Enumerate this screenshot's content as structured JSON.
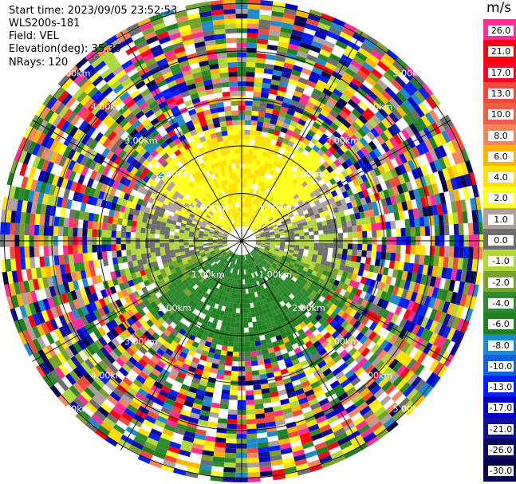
{
  "header": {
    "start_time": "Start time: 2023/09/05 23:52:53",
    "station": "WLS200s-181",
    "field": "Field: VEL",
    "elevation": "Elevation(deg): 35.30",
    "nrays": "NRays: 120"
  },
  "colorbar": {
    "unit": "m/s",
    "levels": [
      {
        "label": "26.0",
        "color": "#ff2c9a",
        "text": "#000000"
      },
      {
        "label": "21.0",
        "color": "#ff0010",
        "text": "#000000"
      },
      {
        "label": "17.0",
        "color": "#ff0020",
        "text": "#000000"
      },
      {
        "label": "13.0",
        "color": "#f24a3a",
        "text": "#000000"
      },
      {
        "label": "10.0",
        "color": "#f25e45",
        "text": "#000000"
      },
      {
        "label": "8.0",
        "color": "#f7845a",
        "text": "#000000"
      },
      {
        "label": "6.0",
        "color": "#f9b500",
        "text": "#000000"
      },
      {
        "label": "4.0",
        "color": "#ffe000",
        "text": "#000000"
      },
      {
        "label": "2.0",
        "color": "#ffff20",
        "text": "#000000"
      },
      {
        "label": "1.0",
        "color": "#b0a0a0",
        "text": "#000000"
      },
      {
        "label": "0.0",
        "color": "#6e6e6e",
        "text": "#000000"
      },
      {
        "label": "-1.0",
        "color": "#b0d83c",
        "text": "#000000"
      },
      {
        "label": "-2.0",
        "color": "#77a32a",
        "text": "#000000"
      },
      {
        "label": "-4.0",
        "color": "#2e8a2e",
        "text": "#000000"
      },
      {
        "label": "-6.0",
        "color": "#208020",
        "text": "#000000"
      },
      {
        "label": "-8.0",
        "color": "#1e8ccc",
        "text": "#000000"
      },
      {
        "label": "-10.0",
        "color": "#1060e0",
        "text": "#000000"
      },
      {
        "label": "-13.0",
        "color": "#0020ff",
        "text": "#000000"
      },
      {
        "label": "-17.0",
        "color": "#0000c8",
        "text": "#000000"
      },
      {
        "label": "-21.0",
        "color": "#10109a",
        "text": "#000000"
      },
      {
        "label": "-26.0",
        "color": "#0a0a64",
        "text": "#000000"
      },
      {
        "label": "-30.0",
        "color": "#050550",
        "text": "#000000"
      }
    ]
  },
  "chart_data": {
    "type": "heatmap",
    "subtype": "polar PPI (plan position indicator)",
    "field": "VEL",
    "unit": "m/s",
    "nrays": 120,
    "elevation_deg": 35.3,
    "range_ring_labels": [
      "1.00km",
      "2.00km",
      "3.00km",
      "4.00km",
      "5.00km"
    ],
    "range_rings_km": [
      1,
      2,
      3,
      4,
      5
    ],
    "spokes_deg": [
      0,
      30,
      60,
      90,
      120,
      150,
      180,
      210,
      240,
      270,
      300,
      330
    ],
    "max_range_km": 5,
    "velocity_pattern": {
      "north_inner_km_lt_2.5": "positive 2-6 m/s (yellow/orange)",
      "south_inner_km_lt_2.5": "negative -1 to -6 m/s (green)",
      "east_west_inner": "near zero (grey)",
      "outer_km_gt_2.5": "noise, all colors"
    },
    "vmin": -30,
    "vmax": 26
  }
}
